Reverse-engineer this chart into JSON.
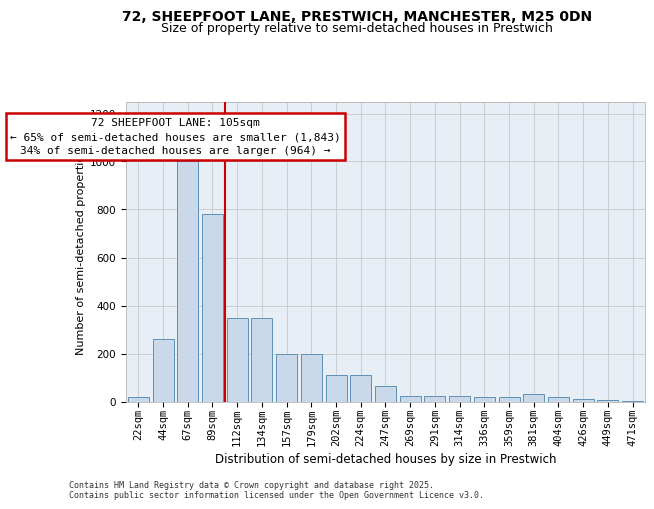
{
  "title_line1": "72, SHEEPFOOT LANE, PRESTWICH, MANCHESTER, M25 0DN",
  "title_line2": "Size of property relative to semi-detached houses in Prestwich",
  "xlabel": "Distribution of semi-detached houses by size in Prestwich",
  "ylabel": "Number of semi-detached properties",
  "categories": [
    "22sqm",
    "44sqm",
    "67sqm",
    "89sqm",
    "112sqm",
    "134sqm",
    "157sqm",
    "179sqm",
    "202sqm",
    "224sqm",
    "247sqm",
    "269sqm",
    "291sqm",
    "314sqm",
    "336sqm",
    "359sqm",
    "381sqm",
    "404sqm",
    "426sqm",
    "449sqm",
    "471sqm"
  ],
  "values": [
    20,
    260,
    1000,
    780,
    350,
    350,
    200,
    200,
    110,
    110,
    65,
    25,
    25,
    25,
    20,
    20,
    30,
    20,
    10,
    8,
    4
  ],
  "bar_color": "#c9d9ea",
  "bar_edge_color": "#6090b8",
  "grid_color": "#c8c8c8",
  "vline_color": "#cc0000",
  "vline_x": 3.5,
  "annotation_title": "72 SHEEPFOOT LANE: 105sqm",
  "annotation_line1": "← 65% of semi-detached houses are smaller (1,843)",
  "annotation_line2": "34% of semi-detached houses are larger (964) →",
  "annotation_box_edgecolor": "#cc0000",
  "footer_line1": "Contains HM Land Registry data © Crown copyright and database right 2025.",
  "footer_line2": "Contains public sector information licensed under the Open Government Licence v3.0.",
  "ylim": [
    0,
    1250
  ],
  "yticks": [
    0,
    200,
    400,
    600,
    800,
    1000,
    1200
  ],
  "bg_color": "#e8eef5",
  "title1_fontsize": 10,
  "title2_fontsize": 9,
  "ann_fontsize": 8,
  "ylabel_fontsize": 8,
  "xlabel_fontsize": 8.5,
  "tick_fontsize": 7.5,
  "footer_fontsize": 6
}
